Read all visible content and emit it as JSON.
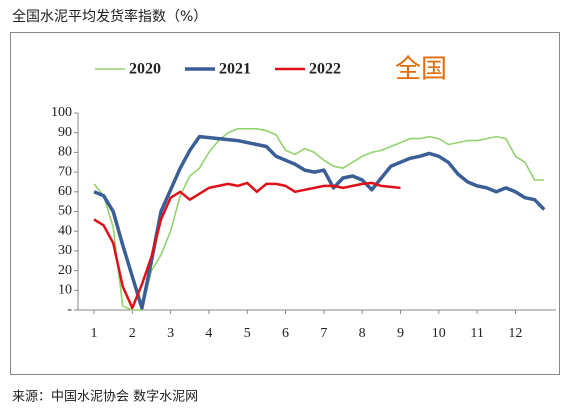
{
  "chart_data": {
    "type": "line",
    "title": "全国水泥平均发货率指数（%）",
    "annotation": "全国",
    "source": "来源：中国水泥协会  数字水泥网",
    "x": [
      1,
      1.25,
      1.5,
      1.75,
      2,
      2.25,
      2.5,
      2.75,
      3,
      3.25,
      3.5,
      3.75,
      4,
      4.25,
      4.5,
      4.75,
      5,
      5.25,
      5.5,
      5.75,
      6,
      6.25,
      6.5,
      6.75,
      7,
      7.25,
      7.5,
      7.75,
      8,
      8.25,
      8.5,
      8.75,
      9,
      9.25,
      9.5,
      9.75,
      10,
      10.25,
      10.5,
      10.75,
      11,
      11.25,
      11.5,
      11.75,
      12,
      12.25,
      12.5,
      12.75
    ],
    "xlim": [
      1,
      12.85
    ],
    "xticks": [
      1,
      2,
      3,
      4,
      5,
      6,
      7,
      8,
      9,
      10,
      11,
      12
    ],
    "ylim": [
      0,
      100
    ],
    "yticks": [
      {
        "value": 0,
        "label": "-"
      },
      10,
      20,
      30,
      40,
      50,
      60,
      70,
      80,
      90,
      100
    ],
    "legend": "top",
    "series": [
      {
        "name": "2020",
        "color": "#92d36e",
        "values": [
          64,
          58,
          42,
          2,
          0,
          0,
          20,
          28,
          40,
          58,
          68,
          72,
          80,
          86,
          90,
          92,
          92,
          92,
          91,
          89,
          81,
          79,
          82,
          80,
          76,
          73,
          72,
          75,
          78,
          80,
          81,
          83,
          85,
          87,
          87,
          88,
          87,
          84,
          85,
          86,
          86,
          87,
          88,
          87,
          78,
          75,
          66,
          66
        ]
      },
      {
        "name": "2021",
        "color": "#3a5f96",
        "values": [
          60,
          58,
          50,
          33,
          17,
          1,
          25,
          50,
          61,
          72,
          81,
          88,
          87.5,
          87,
          86.5,
          86,
          85,
          84,
          83,
          78,
          76,
          74,
          71,
          70,
          71,
          62,
          67,
          68,
          66,
          61,
          67,
          73,
          75,
          77,
          78,
          79.5,
          78,
          75,
          69,
          65,
          63,
          62,
          60,
          62,
          60,
          57,
          56,
          51
        ]
      },
      {
        "name": "2022",
        "color": "#e0101a",
        "values": [
          46,
          43,
          34,
          12,
          1,
          13,
          27,
          46,
          57,
          60,
          56,
          59,
          62,
          63,
          64,
          63,
          64.5,
          60,
          64,
          64,
          63,
          60,
          61,
          62,
          63,
          63,
          62,
          63,
          64,
          64.5,
          63,
          62.5,
          62,
          null,
          null,
          null,
          null,
          null,
          null,
          null,
          null,
          null,
          null,
          null,
          null,
          null,
          null,
          null
        ]
      }
    ]
  }
}
